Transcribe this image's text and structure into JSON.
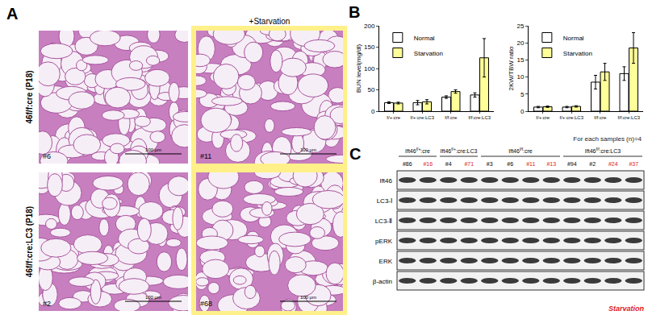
{
  "panel_labels": [
    "A",
    "B",
    "C"
  ],
  "histology": {
    "condition_label": "+Starvation",
    "row_labels": [
      "46f/f:cre (P18)",
      "46f/f:cre:LC3 (P18)"
    ],
    "images": [
      {
        "id": "#6",
        "scale": "100 μm"
      },
      {
        "id": "#11",
        "scale": "100 μm"
      },
      {
        "id": "#2",
        "scale": "100 μm"
      },
      {
        "id": "#68",
        "scale": "100 μm"
      }
    ]
  },
  "chart_data": [
    {
      "type": "bar",
      "y_label": "BUN level(mg/dl)",
      "categories": [
        "f/+:cre",
        "f/+:cre:LC3",
        "f/f:cre",
        "f/f:cre:LC3"
      ],
      "series": [
        {
          "name": "Normal",
          "color": "#ffffff",
          "values": [
            20,
            20,
            33,
            38
          ],
          "error": [
            2,
            5,
            3,
            5
          ]
        },
        {
          "name": "Starvation",
          "color": "#ffff99",
          "values": [
            19,
            22,
            46,
            125
          ],
          "error": [
            2,
            5,
            4,
            45
          ]
        }
      ],
      "ylim": [
        0,
        200
      ],
      "yticks": [
        0,
        50,
        100,
        150,
        200
      ],
      "legend": "top-left",
      "grid": false
    },
    {
      "type": "bar",
      "y_label": "2KW/TBW ratio",
      "categories": [
        "f/+:cre",
        "f/+:cre:LC3",
        "f/f:cre",
        "f/f:cre:LC3"
      ],
      "series": [
        {
          "name": "Normal",
          "color": "#ffffff",
          "values": [
            1.2,
            1.2,
            8.5,
            11
          ],
          "error": [
            0.2,
            0.2,
            2,
            2
          ]
        },
        {
          "name": "Starvation",
          "color": "#ffff99",
          "values": [
            1.3,
            1.4,
            11.5,
            18.5
          ],
          "error": [
            0.2,
            0.2,
            2.5,
            4.5
          ]
        }
      ],
      "ylim": [
        0,
        25
      ],
      "yticks": [
        0,
        5,
        10,
        15,
        20,
        25
      ],
      "legend": "top-left",
      "grid": false
    }
  ],
  "chart_note": "For each samples (n)=4",
  "blot": {
    "groups": [
      {
        "base": "Ift46",
        "sup": "f/+",
        "suffix": ":cre",
        "samples": [
          {
            "id": "#86",
            "starved": false
          },
          {
            "id": "#16",
            "starved": true
          }
        ]
      },
      {
        "base": "Ift46",
        "sup": "f/+",
        "suffix": ":cre:LC3",
        "samples": [
          {
            "id": "#4",
            "starved": false
          },
          {
            "id": "#71",
            "starved": true
          }
        ]
      },
      {
        "base": "Ift46",
        "sup": "f/f",
        "suffix": ":cre",
        "samples": [
          {
            "id": "#3",
            "starved": false
          },
          {
            "id": "#6",
            "starved": false
          },
          {
            "id": "#11",
            "starved": true
          },
          {
            "id": "#13",
            "starved": true
          }
        ]
      },
      {
        "base": "Ift46",
        "sup": "f/f",
        "suffix": ":cre:LC3",
        "samples": [
          {
            "id": "#94",
            "starved": false
          },
          {
            "id": "#2",
            "starved": false
          },
          {
            "id": "#24",
            "starved": true
          },
          {
            "id": "#37",
            "starved": true
          }
        ]
      }
    ],
    "rows": [
      "Ift46",
      "LC3-Ⅰ",
      "LC3-Ⅱ",
      "pERK",
      "ERK",
      "β-actin"
    ],
    "key": {
      "text": "Starvation",
      "color": "#e02020"
    }
  }
}
